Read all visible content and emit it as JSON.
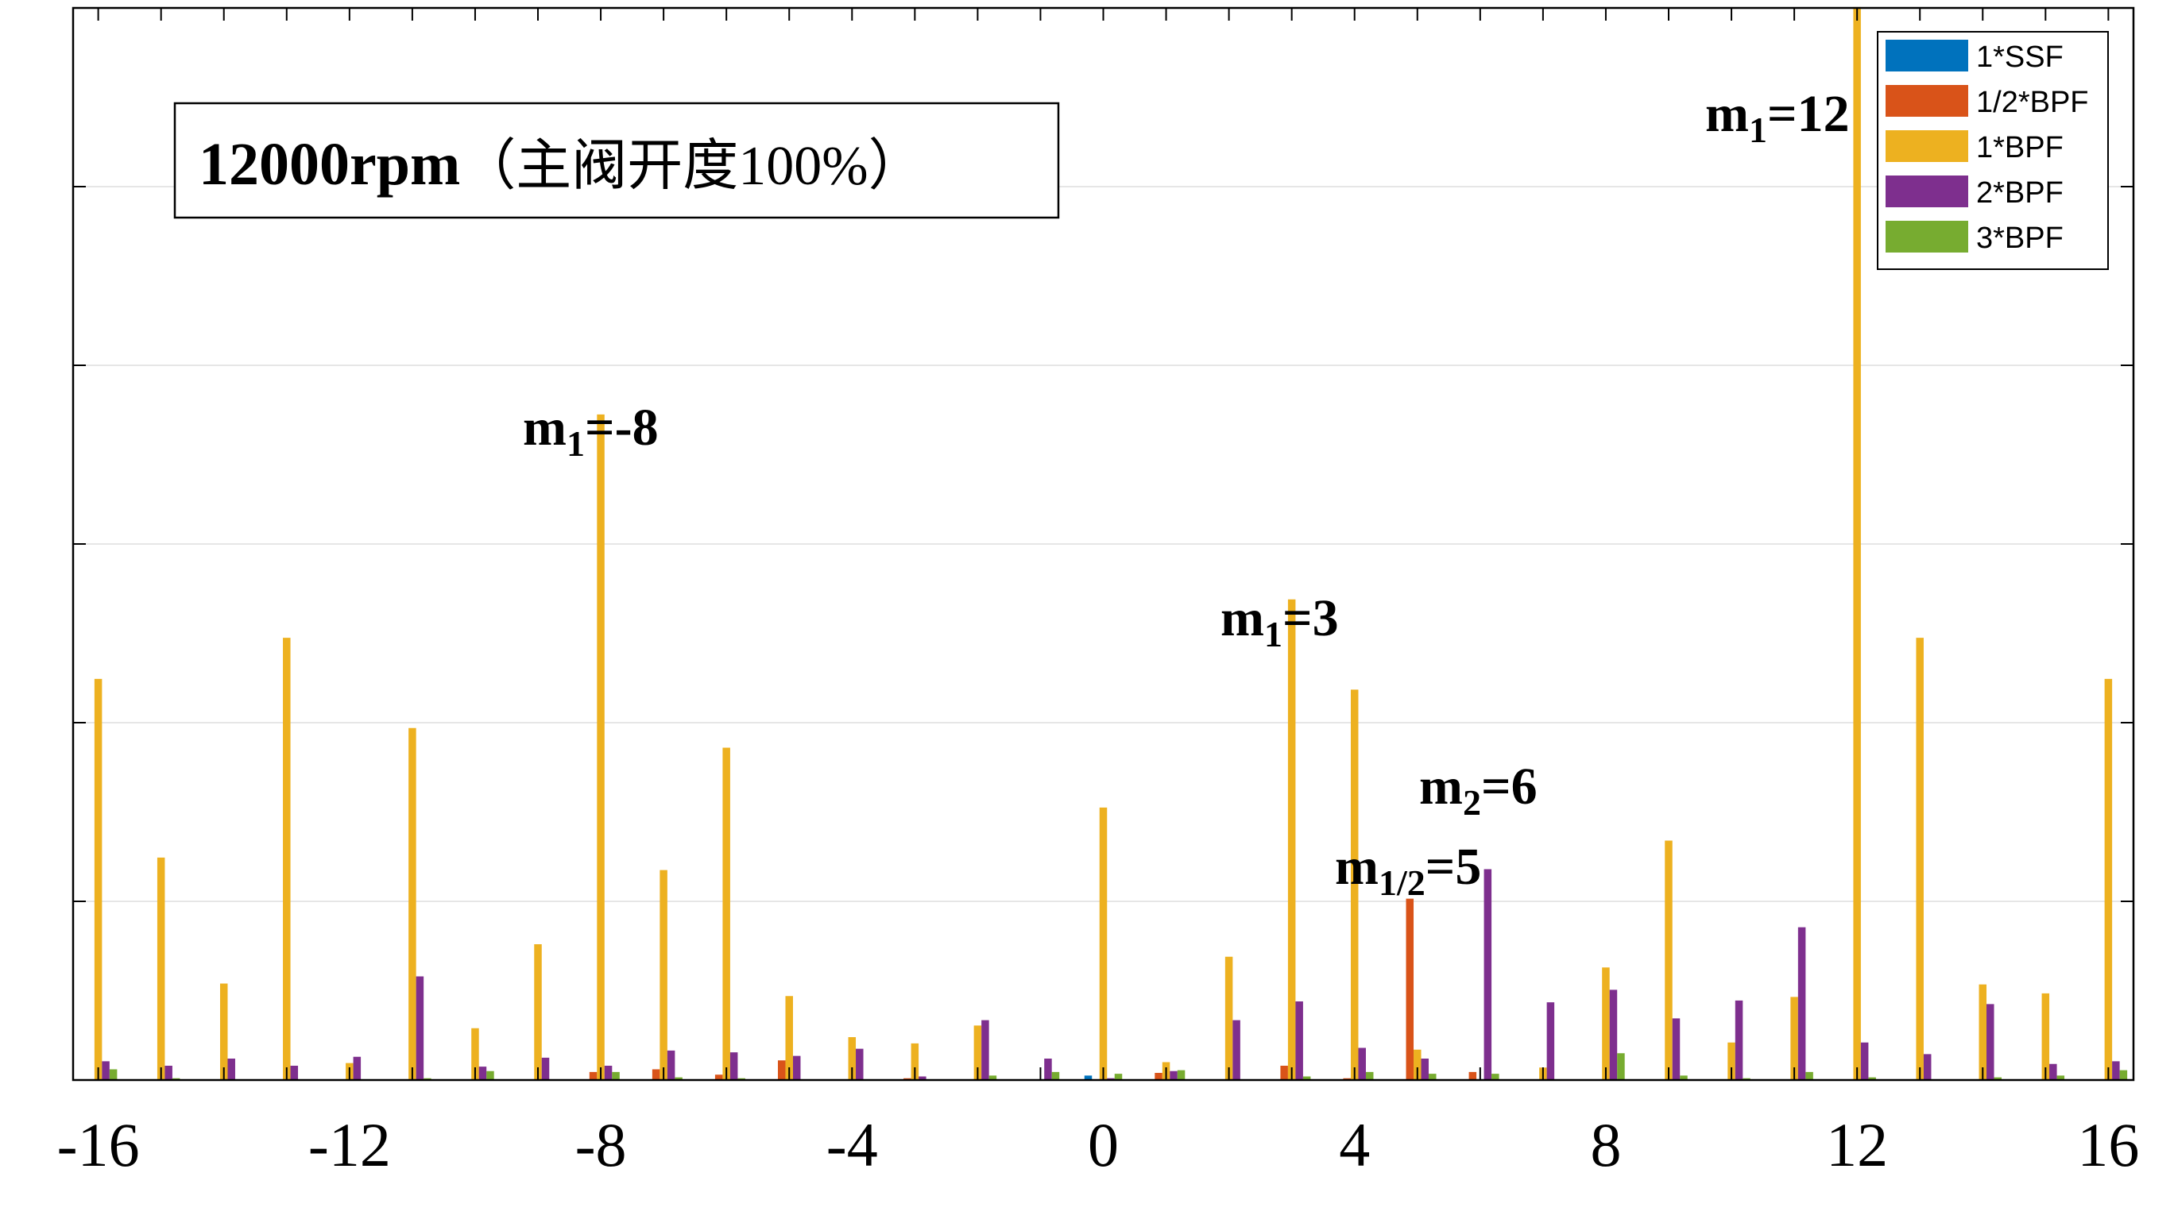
{
  "chart_data": {
    "type": "bar",
    "title_box": {
      "bold": "12000rpm",
      "rest": "（主阀开度100%）"
    },
    "xlim": [
      -16.4,
      16.4
    ],
    "ylim": [
      0,
      1.2
    ],
    "x_ticks": [
      -16,
      -12,
      -8,
      -4,
      0,
      4,
      8,
      12,
      16
    ],
    "grid": "horizontal",
    "legend": {
      "placement": "top-right",
      "entries": [
        {
          "label": "1*SSF",
          "color": "#0072BD"
        },
        {
          "label": "1/2*BPF",
          "color": "#D95319"
        },
        {
          "label": "1*BPF",
          "color": "#EDB120"
        },
        {
          "label": "2*BPF",
          "color": "#7E2F8E"
        },
        {
          "label": "3*BPF",
          "color": "#77AC30"
        }
      ]
    },
    "x": [
      -16,
      -15,
      -14,
      -13,
      -12,
      -11,
      -10,
      -9,
      -8,
      -7,
      -6,
      -5,
      -4,
      -3,
      -2,
      -1,
      0,
      1,
      2,
      3,
      4,
      5,
      6,
      7,
      8,
      9,
      10,
      11,
      12,
      13,
      14,
      15,
      16
    ],
    "series": [
      {
        "name": "1*SSF",
        "color": "#0072BD",
        "values": [
          0,
          0,
          0,
          0,
          0,
          0,
          0,
          0,
          0,
          0,
          0,
          0,
          0,
          0,
          0,
          0,
          0.005,
          0,
          0,
          0,
          0,
          0,
          0,
          0,
          0,
          0,
          0,
          0,
          0,
          0,
          0,
          0,
          0
        ]
      },
      {
        "name": "1/2*BPF",
        "color": "#D95319",
        "values": [
          0,
          0,
          0,
          0,
          0,
          0,
          0,
          0,
          0.009,
          0.012,
          0.006,
          0.022,
          0,
          0.002,
          0,
          0,
          0,
          0.008,
          0,
          0.016,
          0.002,
          0.203,
          0.009,
          0,
          0,
          0,
          0,
          0,
          0,
          0,
          0,
          0,
          0
        ]
      },
      {
        "name": "1*BPF",
        "color": "#EDB120",
        "values": [
          0.449,
          0.249,
          0.108,
          0.495,
          0.019,
          0.394,
          0.058,
          0.152,
          0.745,
          0.235,
          0.372,
          0.094,
          0.048,
          0.041,
          0.061,
          0,
          0.305,
          0.02,
          0.138,
          0.538,
          0.437,
          0.034,
          0,
          0.014,
          0.126,
          0.268,
          0.042,
          0.093,
          1.201,
          0.495,
          0.107,
          0.097,
          0.449
        ]
      },
      {
        "name": "2*BPF",
        "color": "#7E2F8E",
        "values": [
          0.021,
          0.016,
          0.024,
          0.016,
          0.026,
          0.116,
          0.015,
          0.025,
          0.016,
          0.033,
          0.031,
          0.027,
          0.035,
          0.004,
          0.067,
          0.024,
          0.002,
          0.01,
          0.067,
          0.088,
          0.036,
          0.024,
          0.236,
          0.087,
          0.101,
          0.069,
          0.089,
          0.171,
          0.042,
          0.029,
          0.085,
          0.018,
          0.021
        ]
      },
      {
        "name": "3*BPF",
        "color": "#77AC30",
        "values": [
          0.012,
          0.002,
          0,
          0,
          0,
          0.002,
          0.01,
          0,
          0.009,
          0.003,
          0.002,
          0,
          0,
          0,
          0.005,
          0.009,
          0.007,
          0.011,
          0,
          0.004,
          0.009,
          0.007,
          0.007,
          0,
          0.03,
          0.005,
          0.002,
          0.009,
          0.003,
          0,
          0.003,
          0.005,
          0.011
        ]
      }
    ],
    "annotations": [
      {
        "base": "m",
        "sub": "1",
        "tail": "=-8"
      },
      {
        "base": "m",
        "sub": "1",
        "tail": "=3"
      },
      {
        "base": "m",
        "sub": "2",
        "tail": "=6"
      },
      {
        "base": "m",
        "sub": "1/2",
        "tail": "=5"
      },
      {
        "base": "m",
        "sub": "1",
        "tail": "=12"
      }
    ]
  }
}
